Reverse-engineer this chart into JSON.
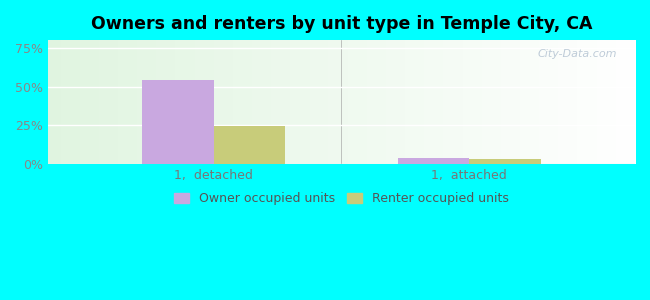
{
  "title": "Owners and renters by unit type in Temple City, CA",
  "categories": [
    "1,  detached",
    "1,  attached"
  ],
  "owner_values": [
    0.545,
    0.04
  ],
  "renter_values": [
    0.245,
    0.035
  ],
  "owner_color": "#c9a8e0",
  "renter_color": "#c8cc7a",
  "outer_bg": "#00ffff",
  "plot_bg": "#e8f5e0",
  "ylim": [
    0,
    0.8
  ],
  "yticks": [
    0.0,
    0.25,
    0.5,
    0.75
  ],
  "ytick_labels": [
    "0%",
    "25%",
    "50%",
    "75%"
  ],
  "legend_owner": "Owner occupied units",
  "legend_renter": "Renter occupied units",
  "watermark": "City-Data.com",
  "bar_width": 0.28,
  "title_fontsize": 12.5,
  "tick_fontsize": 9,
  "legend_fontsize": 9
}
